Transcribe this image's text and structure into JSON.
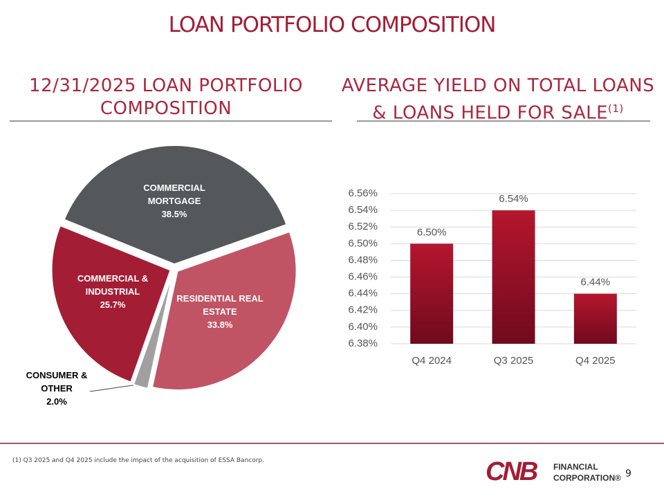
{
  "title": "LOAN PORTFOLIO COMPOSITION",
  "footnote": "(1) Q3 2025 and Q4 2025 include the impact of the acquisition of ESSA Bancorp.",
  "logo": {
    "mark": "CNB",
    "line1": "FINANCIAL",
    "line2": "CORPORATION®"
  },
  "page_number": "9",
  "chart_data": [
    {
      "type": "pie",
      "title": "12/31/2025 LOAN PORTFOLIO COMPOSITION",
      "categories": [
        "COMMERCIAL MORTGAGE",
        "RESIDENTIAL REAL ESTATE",
        "CONSUMER & OTHER",
        "COMMERCIAL & INDUSTRIAL"
      ],
      "values": [
        38.5,
        33.8,
        2.0,
        25.7
      ],
      "value_labels": [
        "38.5%",
        "33.8%",
        "2.0%",
        "25.7%"
      ],
      "colors": [
        "#54585a",
        "#c05465",
        "#a0a0a0",
        "#a31d35"
      ]
    },
    {
      "type": "bar",
      "title": "AVERAGE YIELD ON TOTAL LOANS & LOANS HELD FOR SALE",
      "title_note": "(1)",
      "categories": [
        "Q4 2024",
        "Q3 2025",
        "Q4 2025"
      ],
      "values": [
        6.5,
        6.54,
        6.44
      ],
      "value_labels": [
        "6.50%",
        "6.54%",
        "6.44%"
      ],
      "color": "#b5162e",
      "ylim": [
        6.38,
        6.56
      ],
      "yticks": [
        {
          "value": 6.38,
          "label": "6.38%"
        },
        {
          "value": 6.4,
          "label": "6.40%"
        },
        {
          "value": 6.42,
          "label": "6.42%"
        },
        {
          "value": 6.44,
          "label": "6.44%"
        },
        {
          "value": 6.46,
          "label": "6.46%"
        },
        {
          "value": 6.48,
          "label": "6.48%"
        },
        {
          "value": 6.5,
          "label": "6.50%"
        },
        {
          "value": 6.52,
          "label": "6.52%"
        },
        {
          "value": 6.54,
          "label": "6.54%"
        },
        {
          "value": 6.56,
          "label": "6.56%"
        }
      ],
      "grid": true
    }
  ]
}
